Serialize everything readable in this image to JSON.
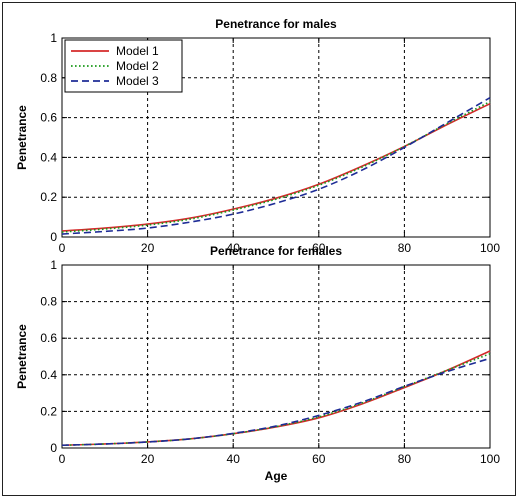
{
  "chart_data": [
    {
      "type": "line",
      "title": "Penetrance for males",
      "xlabel": "",
      "ylabel": "Penetrance",
      "xlim": [
        0,
        100
      ],
      "ylim": [
        0,
        1
      ],
      "xticks": [
        0,
        20,
        40,
        60,
        80,
        100
      ],
      "yticks": [
        0,
        0.2,
        0.4,
        0.6,
        0.8,
        1
      ],
      "ytick_labels": [
        "0",
        "0.2",
        "0.4",
        "0.6",
        "0.8",
        "1"
      ],
      "grid": true,
      "legend": "top-left",
      "x": [
        0,
        10,
        20,
        30,
        40,
        50,
        60,
        70,
        80,
        90,
        100
      ],
      "series": [
        {
          "name": "Model 1",
          "color": "#d42a2a",
          "style": "solid",
          "values": [
            0.03,
            0.045,
            0.065,
            0.095,
            0.14,
            0.195,
            0.265,
            0.355,
            0.455,
            0.565,
            0.67
          ]
        },
        {
          "name": "Model 2",
          "color": "#1a9a1a",
          "style": "dotted",
          "values": [
            0.025,
            0.04,
            0.06,
            0.09,
            0.135,
            0.19,
            0.26,
            0.35,
            0.455,
            0.57,
            0.68
          ]
        },
        {
          "name": "Model 3",
          "color": "#1e2c96",
          "style": "dashed",
          "values": [
            0.015,
            0.028,
            0.045,
            0.075,
            0.115,
            0.17,
            0.24,
            0.335,
            0.45,
            0.575,
            0.7
          ]
        }
      ]
    },
    {
      "type": "line",
      "title": "Penetrance for females",
      "xlabel": "Age",
      "ylabel": "Penetrance",
      "xlim": [
        0,
        100
      ],
      "ylim": [
        0,
        1
      ],
      "xticks": [
        0,
        20,
        40,
        60,
        80,
        100
      ],
      "yticks": [
        0,
        0.2,
        0.4,
        0.6,
        0.8,
        1
      ],
      "ytick_labels": [
        "0",
        "0.2",
        "0.4",
        "0.6",
        "0.8",
        "1"
      ],
      "grid": true,
      "legend": "none",
      "x": [
        0,
        10,
        20,
        30,
        40,
        50,
        60,
        70,
        80,
        90,
        100
      ],
      "series": [
        {
          "name": "Model 1",
          "color": "#d42a2a",
          "style": "solid",
          "values": [
            0.015,
            0.022,
            0.033,
            0.05,
            0.078,
            0.115,
            0.165,
            0.24,
            0.33,
            0.425,
            0.53
          ]
        },
        {
          "name": "Model 2",
          "color": "#1a9a1a",
          "style": "dotted",
          "values": [
            0.015,
            0.022,
            0.033,
            0.05,
            0.078,
            0.117,
            0.17,
            0.245,
            0.335,
            0.425,
            0.515
          ]
        },
        {
          "name": "Model 3",
          "color": "#1e2c96",
          "style": "dashed",
          "values": [
            0.015,
            0.022,
            0.033,
            0.05,
            0.08,
            0.12,
            0.178,
            0.25,
            0.337,
            0.418,
            0.49
          ]
        }
      ]
    }
  ]
}
